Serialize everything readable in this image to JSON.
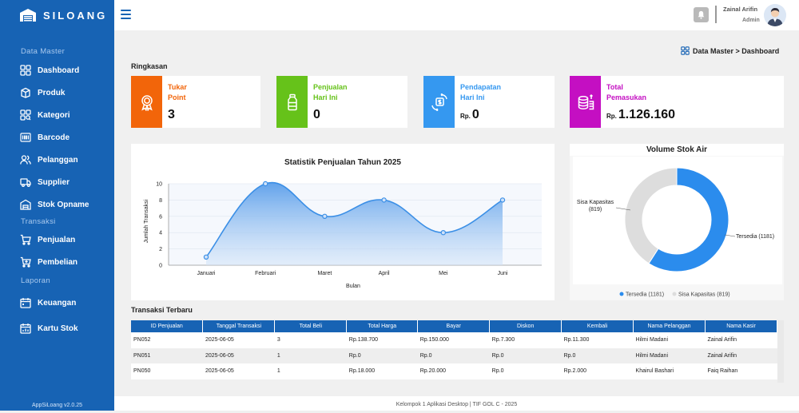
{
  "app": {
    "name": "SILOANG",
    "version": "AppSiLoang v2.0.25"
  },
  "sidebar": {
    "sections": [
      {
        "title": "Data Master",
        "items": [
          {
            "label": "Dashboard",
            "icon": "grid-icon"
          },
          {
            "label": "Produk",
            "icon": "box-icon"
          },
          {
            "label": "Kategori",
            "icon": "category-search-icon"
          },
          {
            "label": "Barcode",
            "icon": "barcode-icon"
          },
          {
            "label": "Pelanggan",
            "icon": "users-icon"
          },
          {
            "label": "Supplier",
            "icon": "truck-icon"
          },
          {
            "label": "Stok Opname",
            "icon": "warehouse-icon"
          }
        ]
      },
      {
        "title": "Transaksi",
        "items": [
          {
            "label": "Penjualan",
            "icon": "cart-icon"
          },
          {
            "label": "Pembelian",
            "icon": "cart-plus-icon"
          }
        ]
      },
      {
        "title": "Laporan",
        "items": [
          {
            "label": "Keuangan",
            "icon": "calendar-icon"
          },
          {
            "label": "Kartu Stok",
            "icon": "calendar-chart-icon"
          }
        ]
      }
    ]
  },
  "header": {
    "user_name": "Zainal Arifin",
    "user_role": "Admin"
  },
  "breadcrumb": "Data Master > Dashboard",
  "summary": {
    "title": "Ringkasan",
    "cards": [
      {
        "line1": "Tukar",
        "line2": "Point",
        "prefix": "",
        "value": "3",
        "color": "#f2650a",
        "icon": "award-icon"
      },
      {
        "line1": "Penjualan",
        "line2": "Hari Ini",
        "prefix": "",
        "value": "0",
        "color": "#66c21a",
        "icon": "bottle-icon"
      },
      {
        "line1": "Pendapatan",
        "line2": "Hari Ini",
        "prefix": "Rp.",
        "value": "0",
        "color": "#3598f0",
        "icon": "money-exchange-icon"
      },
      {
        "line1": "Total",
        "line2": "Pemasukan",
        "prefix": "Rp.",
        "value": "1.126.160",
        "color": "#c40fc2",
        "icon": "coins-icon"
      }
    ]
  },
  "chart_data": [
    {
      "type": "area",
      "title": "Statistik Penjualan Tahun 2025",
      "xlabel": "Bulan",
      "ylabel": "Jumlah Transaksi",
      "categories": [
        "Januari",
        "Februari",
        "Maret",
        "April",
        "Mei",
        "Juni"
      ],
      "values": [
        1,
        10,
        6,
        8,
        4,
        8
      ],
      "ylim": [
        0,
        10
      ],
      "yticks": [
        0,
        2,
        4,
        6,
        8,
        10
      ],
      "color": "#3b8fe6",
      "grid": true
    },
    {
      "type": "pie",
      "title": "Volume Stok Air",
      "slices": [
        {
          "name": "Tersedia",
          "value": 1181,
          "label": "Tersedia (1181)",
          "color": "#2b8ced"
        },
        {
          "name": "Sisa Kapasitas",
          "value": 819,
          "label_line1": "Sisa Kapasitas",
          "label_line2": "(819)",
          "legend": "Sisa Kapasitas (819)",
          "color": "#dddddd"
        }
      ],
      "legend_position": "bottom"
    }
  ],
  "transactions": {
    "title": "Transaksi Terbaru",
    "columns": [
      "ID Penjualan",
      "Tanggal Transaksi",
      "Total Beli",
      "Total Harga",
      "Bayar",
      "Diskon",
      "Kembali",
      "Nama Pelanggan",
      "Nama Kasir"
    ],
    "rows": [
      [
        "PN052",
        "2025-06-05",
        "3",
        "Rp.138.700",
        "Rp.150.000",
        "Rp.7.300",
        "Rp.11.300",
        "Hilmi Madani",
        "Zainal Arifin"
      ],
      [
        "PN051",
        "2025-06-05",
        "1",
        "Rp.0",
        "Rp.0",
        "Rp.0",
        "Rp.0",
        "Hilmi Madani",
        "Zainal Arifin"
      ],
      [
        "PN050",
        "2025-06-05",
        "1",
        "Rp.18.000",
        "Rp.20.000",
        "Rp.0",
        "Rp.2.000",
        "Khairul Bashari",
        "Faiq Raihan"
      ]
    ]
  },
  "footer": "Kelompok 1 Aplikasi Desktop | TIF GOL C - 2025"
}
